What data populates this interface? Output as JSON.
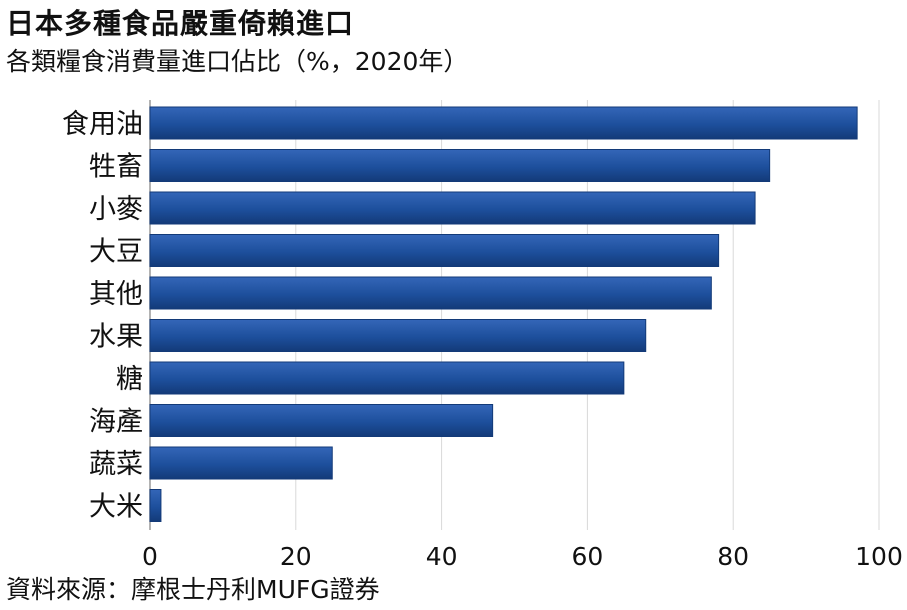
{
  "header": {
    "title": "日本多種食品嚴重倚賴進口",
    "subtitle": "各類糧食消費量進口佔比（%，2020年）"
  },
  "footer": {
    "source": "資料來源：摩根士丹利MUFG證券"
  },
  "colors": {
    "bar": "#1d4f9c",
    "bar_dark": "#133a78",
    "grid": "#d9d9d9"
  },
  "chart_data": {
    "type": "bar",
    "orientation": "horizontal",
    "title": "日本多種食品嚴重倚賴進口",
    "subtitle": "各類糧食消費量進口佔比（%，2020年）",
    "categories": [
      "食用油",
      "牲畜",
      "小麥",
      "大豆",
      "其他",
      "水果",
      "糖",
      "海產",
      "蔬菜",
      "大米"
    ],
    "values": [
      97,
      85,
      83,
      78,
      77,
      68,
      65,
      47,
      25,
      1.5
    ],
    "xlim": [
      0,
      100
    ],
    "xticks": [
      0,
      20,
      40,
      60,
      80,
      100
    ],
    "grid": true
  }
}
